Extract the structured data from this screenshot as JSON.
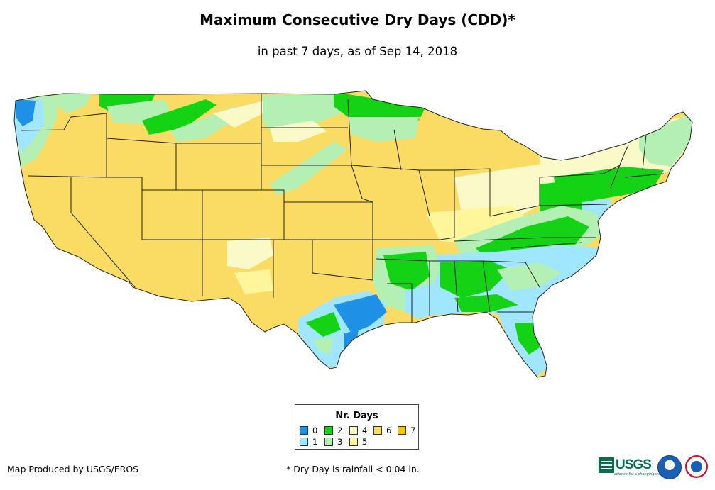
{
  "title": "Maximum Consecutive Dry Days (CDD)*",
  "subtitle": "in past 7 days, as of Sep 14, 2018",
  "legend": {
    "title": "Nr. Days",
    "items": [
      {
        "label": "0",
        "color": "#1e90e6"
      },
      {
        "label": "1",
        "color": "#a0e6ff"
      },
      {
        "label": "2",
        "color": "#14d214"
      },
      {
        "label": "3",
        "color": "#b4f0b4"
      },
      {
        "label": "4",
        "color": "#fafac8"
      },
      {
        "label": "5",
        "color": "#fff59a"
      },
      {
        "label": "6",
        "color": "#fadc64"
      },
      {
        "label": "7",
        "color": "#f5c800"
      }
    ]
  },
  "footer": {
    "credit": "Map Produced by USGS/EROS",
    "note": "* Dry Day is rainfall < 0.04 in."
  },
  "logos": {
    "usgs_text": "USGS",
    "usgs_tagline": "science for a changing world"
  },
  "colors": {
    "state_border": "#222222",
    "land_default": "#fadc64"
  }
}
